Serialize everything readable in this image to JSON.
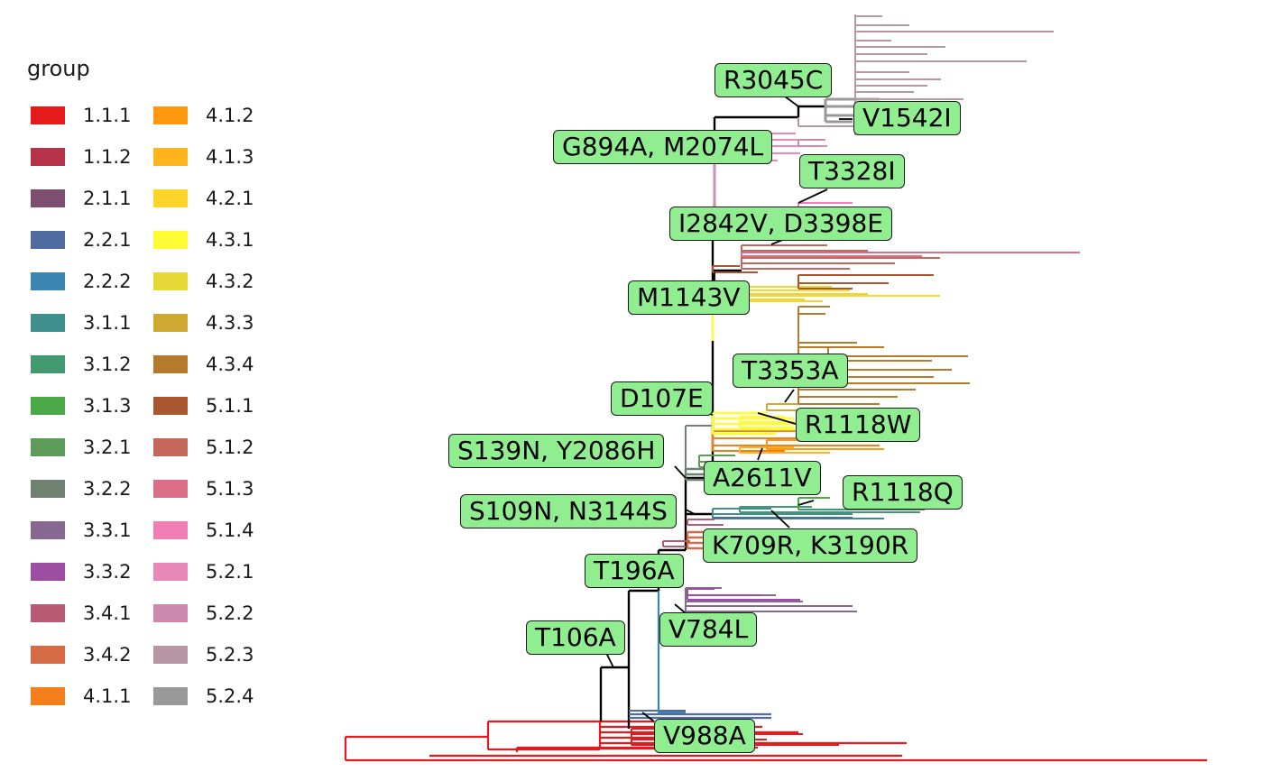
{
  "legend": {
    "title": "group",
    "items": [
      {
        "label": "1.1.1",
        "color": "#e41a1c"
      },
      {
        "label": "1.1.2",
        "color": "#b5344a"
      },
      {
        "label": "2.1.1",
        "color": "#7e4e70"
      },
      {
        "label": "2.2.1",
        "color": "#4f6b9f"
      },
      {
        "label": "2.2.2",
        "color": "#3a86b1"
      },
      {
        "label": "3.1.1",
        "color": "#3f8f8f"
      },
      {
        "label": "3.1.2",
        "color": "#42986f"
      },
      {
        "label": "3.1.3",
        "color": "#4ca94a"
      },
      {
        "label": "3.2.1",
        "color": "#5e9a58"
      },
      {
        "label": "3.2.2",
        "color": "#6f8272"
      },
      {
        "label": "3.3.1",
        "color": "#866890"
      },
      {
        "label": "3.3.2",
        "color": "#9c4ea3"
      },
      {
        "label": "3.4.1",
        "color": "#b85a73"
      },
      {
        "label": "3.4.2",
        "color": "#d66b46"
      },
      {
        "label": "4.1.1",
        "color": "#f47e1b"
      },
      {
        "label": "4.1.2",
        "color": "#ff9811"
      },
      {
        "label": "4.1.3",
        "color": "#ffb31f"
      },
      {
        "label": "4.2.1",
        "color": "#ffd42a"
      },
      {
        "label": "4.3.1",
        "color": "#fffc35"
      },
      {
        "label": "4.3.2",
        "color": "#e6d836"
      },
      {
        "label": "4.3.3",
        "color": "#d0a933"
      },
      {
        "label": "4.3.4",
        "color": "#b57a2c"
      },
      {
        "label": "5.1.1",
        "color": "#a9572f"
      },
      {
        "label": "5.1.2",
        "color": "#c5665b"
      },
      {
        "label": "5.1.3",
        "color": "#dc6e88"
      },
      {
        "label": "5.1.4",
        "color": "#f07fb5"
      },
      {
        "label": "5.2.1",
        "color": "#e788b9"
      },
      {
        "label": "5.2.2",
        "color": "#cd8ab1"
      },
      {
        "label": "5.2.3",
        "color": "#b896a4"
      },
      {
        "label": "5.2.4",
        "color": "#999999"
      }
    ]
  },
  "mutations": [
    "R3045C",
    "V1542I",
    "G894A, M2074L",
    "T3328I",
    "I2842V, D3398E",
    "M1143V",
    "T3353A",
    "D107E",
    "R1118W",
    "S139N, Y2086H",
    "A2611V",
    "R1118Q",
    "S109N, N3144S",
    "K709R, K3190R",
    "T196A",
    "V784L",
    "T106A",
    "V988A"
  ],
  "colors": {
    "label_fill": "#90ee90",
    "backbone": "#000000"
  }
}
